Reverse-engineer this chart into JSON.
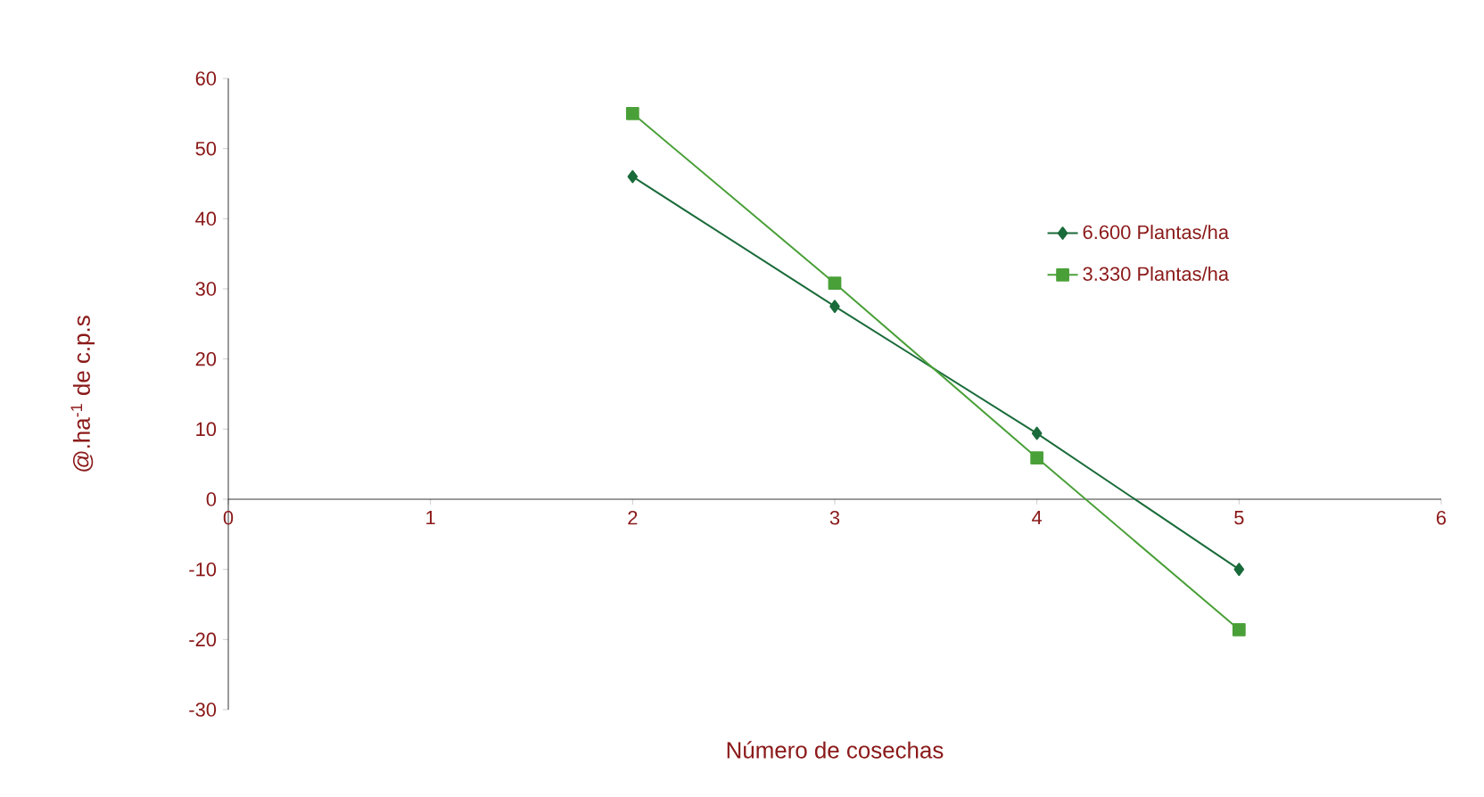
{
  "chart_data": {
    "type": "line",
    "xlabel": "Número de cosechas",
    "ylabel": "@.ha$^{-1}$ de c.p.s",
    "x": [
      2,
      3,
      4,
      5
    ],
    "series": [
      {
        "name": "6.600 Plantas/ha",
        "color": "#1a6b3a",
        "marker": "diamond",
        "values": [
          46,
          27.5,
          9.4,
          -10
        ]
      },
      {
        "name": "3.330 Plantas/ha",
        "color": "#4aa038",
        "marker": "square",
        "values": [
          55,
          30.8,
          5.9,
          -18.6
        ]
      }
    ],
    "xlim": [
      0,
      6
    ],
    "ylim": [
      -30,
      60
    ],
    "xticks": [
      0,
      1,
      2,
      3,
      4,
      5,
      6
    ],
    "yticks": [
      -30,
      -20,
      -10,
      0,
      10,
      20,
      30,
      40,
      50,
      60
    ],
    "grid": false,
    "legend": "right"
  }
}
